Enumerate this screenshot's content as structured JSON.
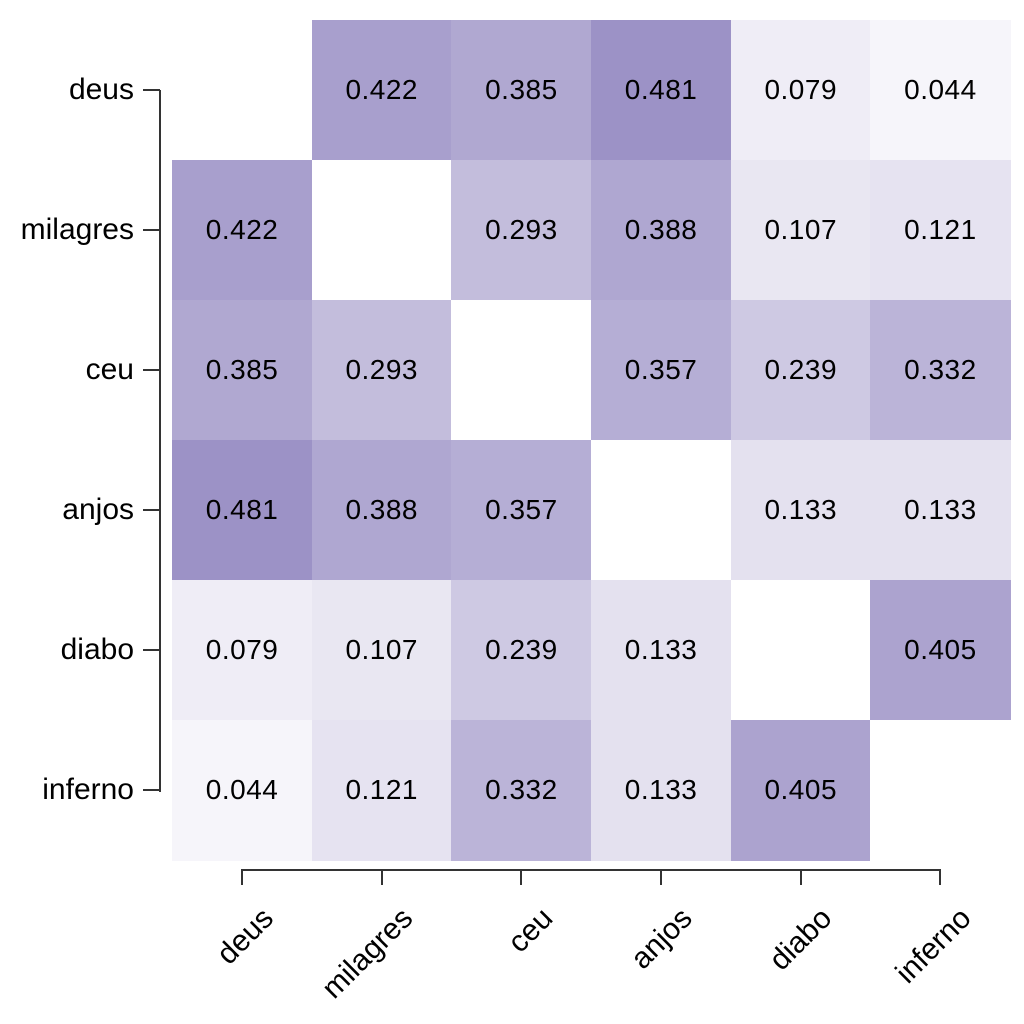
{
  "chart_data": {
    "type": "heatmap",
    "title": "",
    "xlabel": "",
    "ylabel": "",
    "legend": "none",
    "grid": "off",
    "categories": [
      "deus",
      "milagres",
      "ceu",
      "anjos",
      "diabo",
      "inferno"
    ],
    "x_tick_labels": [
      "deus",
      "milagres",
      "ceu",
      "anjos",
      "diabo",
      "inferno"
    ],
    "y_tick_labels": [
      "deus",
      "milagres",
      "ceu",
      "anjos",
      "diabo",
      "inferno"
    ],
    "x_label_rotation_deg": 45,
    "diagonal_style": "blank-white",
    "matrix": [
      [
        null,
        0.422,
        0.385,
        0.481,
        0.079,
        0.044
      ],
      [
        0.422,
        null,
        0.293,
        0.388,
        0.107,
        0.121
      ],
      [
        0.385,
        0.293,
        null,
        0.357,
        0.239,
        0.332
      ],
      [
        0.481,
        0.388,
        0.357,
        null,
        0.133,
        0.133
      ],
      [
        0.079,
        0.107,
        0.239,
        0.133,
        null,
        0.405
      ],
      [
        0.044,
        0.121,
        0.332,
        0.133,
        0.405,
        null
      ]
    ],
    "cell_colors": [
      [
        null,
        "#A89FCD",
        "#B0A8D1",
        "#9C92C6",
        "#EFEDF6",
        "#F6F5FA"
      ],
      [
        "#A89FCD",
        null,
        "#C3BDDC",
        "#AFA7D1",
        "#E9E7F2",
        "#E6E3F1"
      ],
      [
        "#B0A8D1",
        "#C3BDDC",
        null,
        "#B5AED5",
        "#CEC9E3",
        "#BBB4D8"
      ],
      [
        "#9C92C6",
        "#AFA7D1",
        "#B5AED5",
        null,
        "#E4E1EF",
        "#E4E1EF"
      ],
      [
        "#EFEDF6",
        "#E9E7F2",
        "#CEC9E3",
        "#E4E1EF",
        null,
        "#ACA3CF"
      ],
      [
        "#F6F5FA",
        "#E6E3F1",
        "#BBB4D8",
        "#E4E1EF",
        "#ACA3CF",
        null
      ]
    ],
    "color_scale": {
      "min_value": 0,
      "max_value": 0.481,
      "min_color": "#FFFFFF",
      "max_color": "#9C92C6"
    },
    "colors": {
      "background": "#FFFFFF",
      "cell_text": "#000000",
      "axis_line": "#333333",
      "axis_label_text": "#000000"
    },
    "value_decimals": 3
  }
}
